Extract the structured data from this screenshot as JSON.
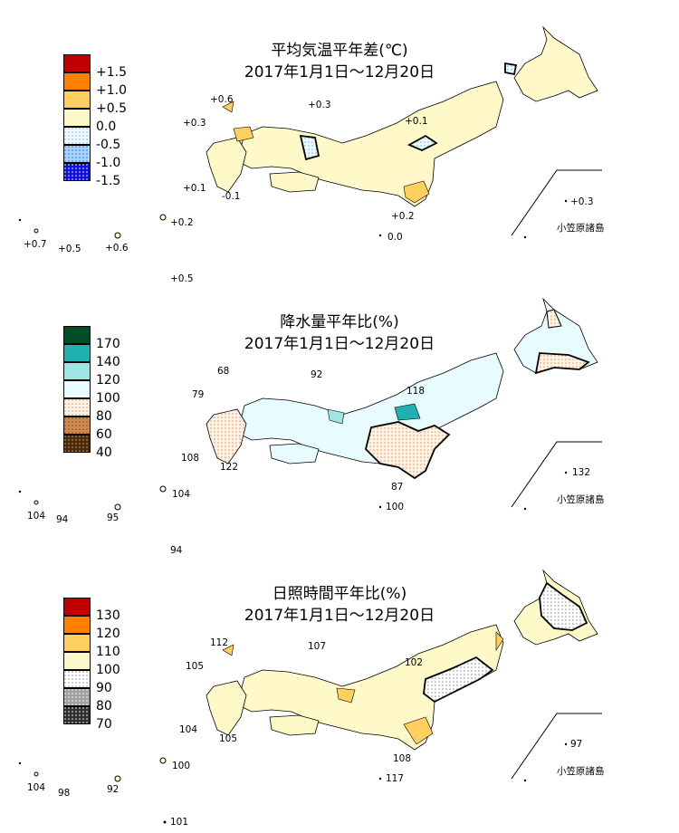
{
  "panels": [
    {
      "title_line1": "平均気温平年差(℃)",
      "title_line2": "2017年1月1日～12月20日",
      "legend": [
        {
          "label": "+1.5",
          "color": "#c00000",
          "pattern": "solid"
        },
        {
          "label": "+1.0",
          "color": "#ff8000",
          "pattern": "solid"
        },
        {
          "label": "+0.5",
          "color": "#ffd060",
          "pattern": "solid"
        },
        {
          "label": "0.0",
          "color": "#fff8c8",
          "pattern": "solid"
        },
        {
          "label": "-0.5",
          "color": "#dff4ff",
          "pattern": "dots-light-blue"
        },
        {
          "label": "-1.0",
          "color": "#9ed0ff",
          "pattern": "dots-blue"
        },
        {
          "label": "-1.5",
          "color": "#1010e0",
          "pattern": "dots-dark-blue"
        }
      ],
      "values": [
        "+0.6",
        "+0.3",
        "+0.3",
        "+0.1",
        "+0.1",
        "-0.1",
        "+0.2",
        "0.0",
        "+0.3",
        "+0.2",
        "+0.7",
        "+0.5",
        "+0.6",
        "+0.5"
      ],
      "island_label": "小笠原諸島"
    },
    {
      "title_line1": "降水量平年比(%)",
      "title_line2": "2017年1月1日～12月20日",
      "legend": [
        {
          "label": "170",
          "color": "#004d26",
          "pattern": "solid"
        },
        {
          "label": "140",
          "color": "#20b0b0",
          "pattern": "solid"
        },
        {
          "label": "120",
          "color": "#a0e4e4",
          "pattern": "solid"
        },
        {
          "label": "100",
          "color": "#e8fbff",
          "pattern": "solid"
        },
        {
          "label": "80",
          "color": "#ffe8d8",
          "pattern": "dots-tan"
        },
        {
          "label": "60",
          "color": "#d08850",
          "pattern": "dots-brown"
        },
        {
          "label": "40",
          "color": "#4a2a08",
          "pattern": "dots-dark-brown"
        }
      ],
      "values": [
        "68",
        "92",
        "79",
        "118",
        "108",
        "122",
        "87",
        "100",
        "132",
        "104",
        "104",
        "94",
        "95",
        "94"
      ],
      "island_label": "小笠原諸島"
    },
    {
      "title_line1": "日照時間平年比(%)",
      "title_line2": "2017年1月1日～12月20日",
      "legend": [
        {
          "label": "130",
          "color": "#c00000",
          "pattern": "solid"
        },
        {
          "label": "120",
          "color": "#ff8000",
          "pattern": "solid"
        },
        {
          "label": "110",
          "color": "#ffd060",
          "pattern": "solid"
        },
        {
          "label": "100",
          "color": "#fff8c8",
          "pattern": "solid"
        },
        {
          "label": "90",
          "color": "#ffffff",
          "pattern": "dots-grey"
        },
        {
          "label": "80",
          "color": "#a0a0a0",
          "pattern": "dots-dark-grey"
        },
        {
          "label": "70",
          "color": "#303030",
          "pattern": "dots-black"
        }
      ],
      "values": [
        "112",
        "107",
        "105",
        "102",
        "104",
        "105",
        "108",
        "117",
        "97",
        "100",
        "104",
        "98",
        "92",
        "101"
      ],
      "island_label": "小笠原諸島"
    }
  ]
}
